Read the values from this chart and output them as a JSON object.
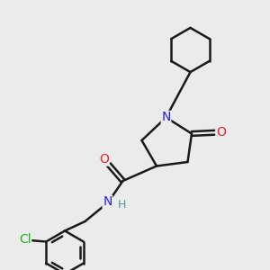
{
  "bg_color": "#ebebeb",
  "bond_color": "#1a1a1a",
  "bond_width": 1.8,
  "n_color": "#2020ee",
  "o_color": "#ee2020",
  "cl_color": "#1ab51a",
  "h_color": "#4a9898",
  "figsize": [
    3.0,
    3.0
  ],
  "dpi": 100,
  "xlim": [
    0,
    10
  ],
  "ylim": [
    0,
    10
  ]
}
